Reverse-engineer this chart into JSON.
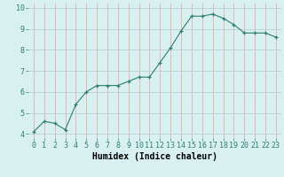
{
  "x": [
    0,
    1,
    2,
    3,
    4,
    5,
    6,
    7,
    8,
    9,
    10,
    11,
    12,
    13,
    14,
    15,
    16,
    17,
    18,
    19,
    20,
    21,
    22,
    23
  ],
  "y": [
    4.1,
    4.6,
    4.5,
    4.2,
    5.4,
    6.0,
    6.3,
    6.3,
    6.3,
    6.5,
    6.7,
    6.7,
    7.4,
    8.1,
    8.9,
    9.6,
    9.6,
    9.7,
    9.5,
    9.2,
    8.8,
    8.8,
    8.8,
    8.6
  ],
  "line_color": "#2e7d6e",
  "marker": "+",
  "bg_color": "#d8f0f0",
  "grid_color_major": "#b8d8d8",
  "grid_color_minor": "#e8c8c8",
  "xlabel": "Humidex (Indice chaleur)",
  "xlabel_fontsize": 7,
  "tick_fontsize": 6,
  "xlim": [
    -0.5,
    23.5
  ],
  "ylim": [
    3.8,
    10.2
  ],
  "yticks": [
    4,
    5,
    6,
    7,
    8,
    9,
    10
  ],
  "xticks": [
    0,
    1,
    2,
    3,
    4,
    5,
    6,
    7,
    8,
    9,
    10,
    11,
    12,
    13,
    14,
    15,
    16,
    17,
    18,
    19,
    20,
    21,
    22,
    23
  ]
}
